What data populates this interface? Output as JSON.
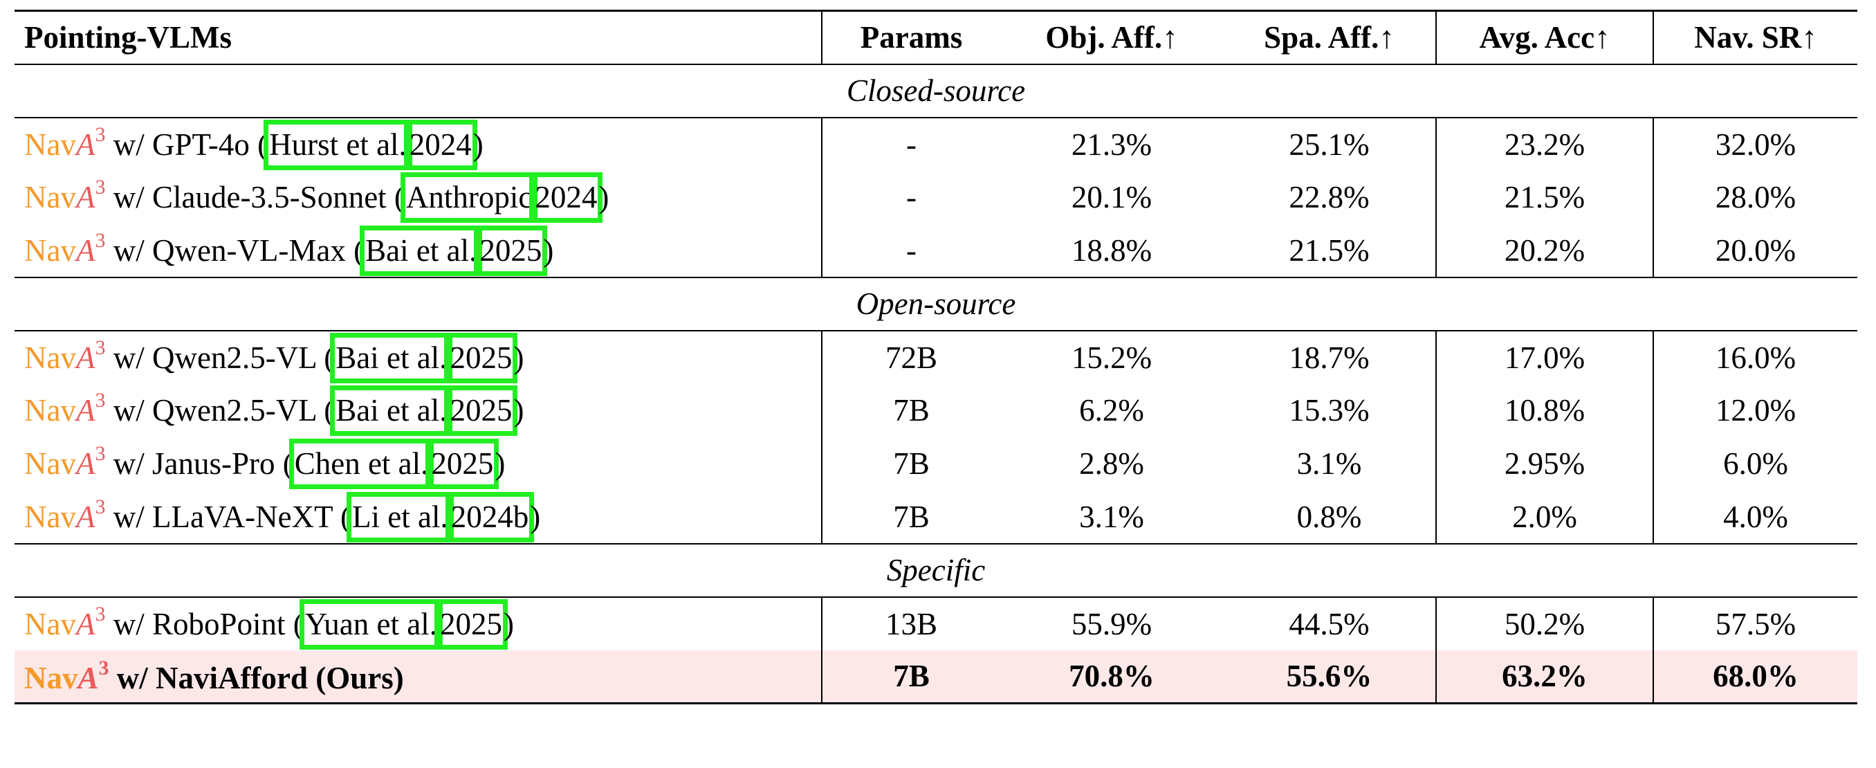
{
  "table": {
    "header": [
      "Pointing-VLMs",
      "Params",
      "Obj. Aff.↑",
      "Spa. Aff.↑",
      "Avg. Acc↑",
      "Nav. SR↑"
    ],
    "sections": [
      {
        "title": "Closed-source",
        "rows": [
          {
            "brand": "Nav",
            "brand_var": "A",
            "brand_sup": "3",
            "model": " w/ GPT-4o (",
            "author": "Hurst et al.",
            "year": "2024",
            "suffix": ")",
            "cells": [
              "-",
              "21.3%",
              "25.1%",
              "23.2%",
              "32.0%"
            ]
          },
          {
            "brand": "Nav",
            "brand_var": "A",
            "brand_sup": "3",
            "model": " w/ Claude-3.5-Sonnet (",
            "author": "Anthropic",
            "year": "2024",
            "suffix": ")",
            "cells": [
              "-",
              "20.1%",
              "22.8%",
              "21.5%",
              "28.0%"
            ]
          },
          {
            "brand": "Nav",
            "brand_var": "A",
            "brand_sup": "3",
            "model": " w/ Qwen-VL-Max (",
            "author": "Bai et al.",
            "year": "2025",
            "suffix": ")",
            "cells": [
              "-",
              "18.8%",
              "21.5%",
              "20.2%",
              "20.0%"
            ]
          }
        ]
      },
      {
        "title": "Open-source",
        "rows": [
          {
            "brand": "Nav",
            "brand_var": "A",
            "brand_sup": "3",
            "model": " w/ Qwen2.5-VL (",
            "author": "Bai et al.",
            "year": "2025",
            "suffix": ")",
            "cells": [
              "72B",
              "15.2%",
              "18.7%",
              "17.0%",
              "16.0%"
            ]
          },
          {
            "brand": "Nav",
            "brand_var": "A",
            "brand_sup": "3",
            "model": " w/ Qwen2.5-VL (",
            "author": "Bai et al.",
            "year": "2025",
            "suffix": ")",
            "cells": [
              "7B",
              "6.2%",
              "15.3%",
              "10.8%",
              "12.0%"
            ]
          },
          {
            "brand": "Nav",
            "brand_var": "A",
            "brand_sup": "3",
            "model": " w/ Janus-Pro (",
            "author": "Chen et al.",
            "year": "2025",
            "suffix": ")",
            "cells": [
              "7B",
              "2.8%",
              "3.1%",
              "2.95%",
              "6.0%"
            ]
          },
          {
            "brand": "Nav",
            "brand_var": "A",
            "brand_sup": "3",
            "model": " w/ LLaVA-NeXT (",
            "author": "Li et al.",
            "year": "2024b",
            "suffix": ")",
            "cells": [
              "7B",
              "3.1%",
              "0.8%",
              "2.0%",
              "4.0%"
            ]
          }
        ]
      },
      {
        "title": "Specific",
        "rows": [
          {
            "brand": "Nav",
            "brand_var": "A",
            "brand_sup": "3",
            "model": " w/ RoboPoint (",
            "author": "Yuan et al.",
            "year": "2025",
            "suffix": ")",
            "cells": [
              "13B",
              "55.9%",
              "44.5%",
              "50.2%",
              "57.5%"
            ]
          },
          {
            "brand": "Nav",
            "brand_var": "A",
            "brand_sup": "3",
            "model": " w/ NaviAfford (Ours)",
            "cells": [
              "7B",
              "70.8%",
              "55.6%",
              "63.2%",
              "68.0%"
            ]
          }
        ]
      }
    ]
  }
}
